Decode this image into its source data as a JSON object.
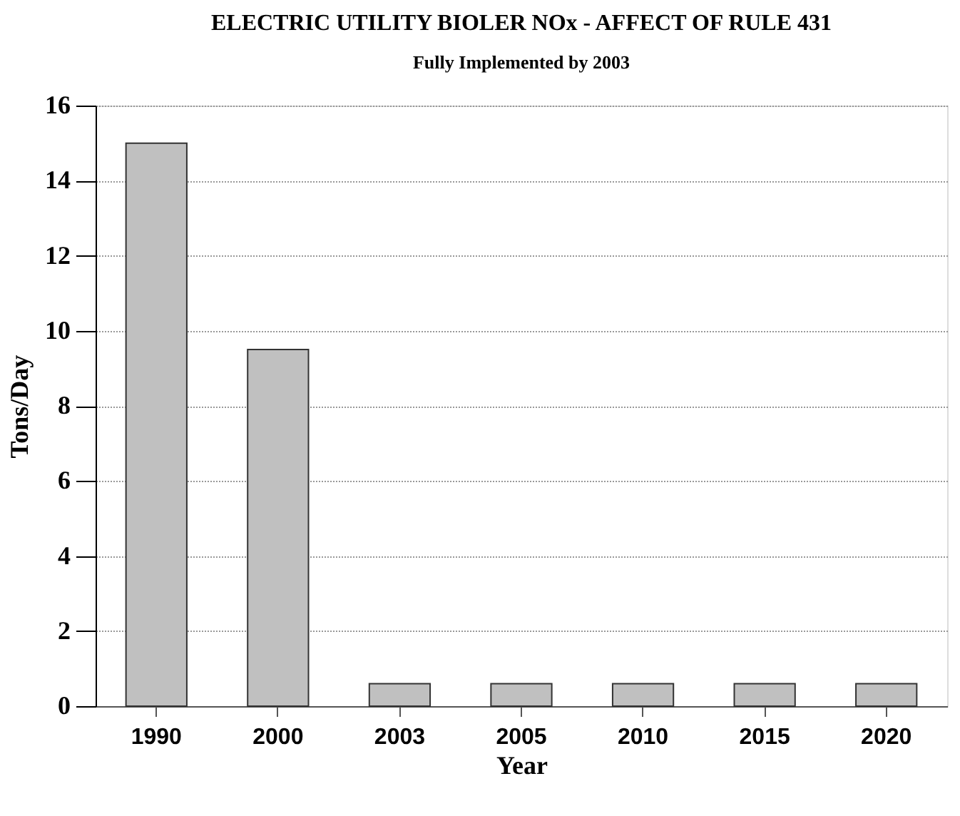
{
  "chart_data": {
    "type": "bar",
    "title": "ELECTRIC UTILITY BIOLER NOx - AFFECT OF RULE 431",
    "subtitle": "Fully Implemented by 2003",
    "xlabel": "Year",
    "ylabel": "Tons/Day",
    "categories": [
      "1990",
      "2000",
      "2003",
      "2005",
      "2010",
      "2015",
      "2020"
    ],
    "values": [
      15,
      9.5,
      0.6,
      0.6,
      0.6,
      0.6,
      0.6
    ],
    "color": "#c0c0c0",
    "ylim": [
      0,
      16
    ],
    "yticks": [
      0,
      2,
      4,
      6,
      8,
      10,
      12,
      14,
      16
    ],
    "grid": "y"
  }
}
